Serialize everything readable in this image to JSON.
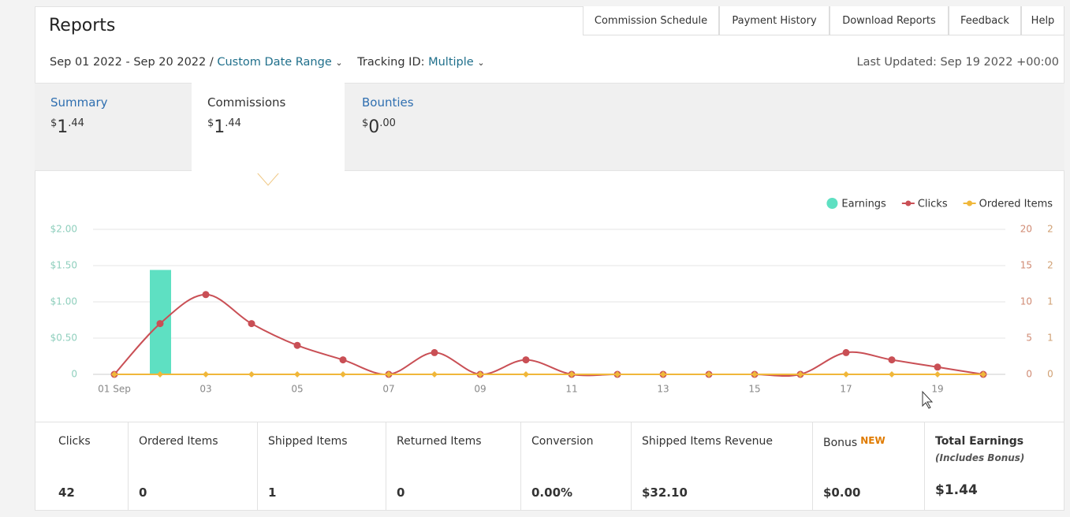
{
  "header": {
    "title": "Reports",
    "nav": [
      "Commission Schedule",
      "Payment History",
      "Download Reports",
      "Feedback",
      "Help"
    ],
    "date_range": "Sep 01 2022 - Sep 20 2022 /",
    "custom_range": "Custom Date Range",
    "tracking_label": "Tracking ID:",
    "tracking_value": "Multiple",
    "last_updated": "Last Updated: Sep 19 2022 +00:00"
  },
  "tabs": [
    {
      "name": "Summary",
      "currency": "$",
      "whole": "1",
      "cents": ".44"
    },
    {
      "name": "Commissions",
      "currency": "$",
      "whole": "1",
      "cents": ".44"
    },
    {
      "name": "Bounties",
      "currency": "$",
      "whole": "0",
      "cents": ".00"
    }
  ],
  "chart_data": {
    "type": "combo",
    "categories": [
      "01 Sep",
      null,
      "03",
      null,
      "05",
      null,
      "07",
      null,
      "09",
      null,
      "11",
      null,
      "13",
      null,
      "15",
      null,
      "17",
      null,
      "19",
      null
    ],
    "series": [
      {
        "name": "Earnings",
        "type": "bar",
        "axis": "y",
        "color": "#5ee0c2",
        "values": [
          0,
          1.44,
          0,
          0,
          0,
          0,
          0,
          0,
          0,
          0,
          0,
          0,
          0,
          0,
          0,
          0,
          0,
          0,
          0,
          0
        ]
      },
      {
        "name": "Clicks",
        "type": "line",
        "axis": "y2",
        "color": "#c94f55",
        "values": [
          0,
          7,
          11,
          7,
          4,
          2,
          0,
          3,
          0,
          2,
          0,
          0,
          0,
          0,
          0,
          0,
          3,
          2,
          1,
          0
        ]
      },
      {
        "name": "Ordered Items",
        "type": "line",
        "axis": "y3",
        "color": "#f0b73a",
        "values": [
          0,
          0,
          0,
          0,
          0,
          0,
          0,
          0,
          0,
          0,
          0,
          0,
          0,
          0,
          0,
          0,
          0,
          0,
          0,
          0
        ]
      }
    ],
    "ylim": [
      0,
      2
    ],
    "yticks": [
      0,
      {
        "value": 0.5,
        "label": "$0.50"
      },
      {
        "value": 1,
        "label": "$1.00"
      },
      {
        "value": 1.5,
        "label": "$1.50"
      },
      {
        "value": 2,
        "label": "$2.00"
      }
    ],
    "y2lim": [
      0,
      20
    ],
    "y2ticks": [
      0,
      5,
      10,
      15,
      20
    ],
    "y3lim": [
      0,
      2
    ],
    "y3ticks": [
      0,
      {
        "value": 0.5,
        "label": "1"
      },
      1,
      {
        "value": 1.5,
        "label": "2"
      },
      2
    ],
    "grid": true,
    "legend": "top-right"
  },
  "stats": [
    {
      "label": "Clicks",
      "value": "42"
    },
    {
      "label": "Ordered Items",
      "value": "0"
    },
    {
      "label": "Shipped Items",
      "value": "1"
    },
    {
      "label": "Returned Items",
      "value": "0"
    },
    {
      "label": "Conversion",
      "value": "0.00%"
    },
    {
      "label": "Shipped Items Revenue",
      "value": "$32.10"
    },
    {
      "label": "Bonus",
      "badge": "NEW",
      "value": "$0.00"
    },
    {
      "label": "Total Earnings",
      "sublabel": "(Includes Bonus)",
      "value": "$1.44"
    }
  ]
}
